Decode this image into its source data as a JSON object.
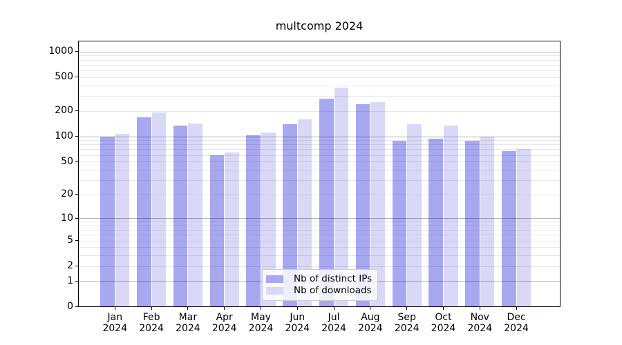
{
  "figure": {
    "title": "multcomp 2024"
  },
  "chart_data": {
    "type": "bar",
    "title": "multcomp 2024",
    "categories": [
      "Jan 2024",
      "Feb 2024",
      "Mar 2024",
      "Apr 2024",
      "May 2024",
      "Jun 2024",
      "Jul 2024",
      "Aug 2024",
      "Sep 2024",
      "Oct 2024",
      "Nov 2024",
      "Dec 2024"
    ],
    "series": [
      {
        "name": "Nb of distinct IPs",
        "color": "#a8a8f0",
        "values": [
          100,
          168,
          134,
          60,
          103,
          139,
          280,
          238,
          88,
          94,
          88,
          67
        ]
      },
      {
        "name": "Nb of downloads",
        "color": "#d9d9f7",
        "values": [
          106,
          190,
          141,
          64,
          111,
          159,
          380,
          252,
          140,
          133,
          100,
          71
        ]
      }
    ],
    "xlabel": "",
    "ylabel": "",
    "yscale": "log10(value+1)",
    "yticks": [
      0,
      1,
      2,
      5,
      10,
      20,
      50,
      100,
      200,
      500,
      1000
    ],
    "ylim": [
      0,
      1300
    ],
    "grid": "horizontal, minor log gridlines, darker lines at decades",
    "legend_position": "inside-bottom-center",
    "colors": {
      "grid_minor": "#e8e8e8",
      "grid_major": "#b0b0b0",
      "axis": "#000000",
      "background": "#ffffff"
    }
  }
}
